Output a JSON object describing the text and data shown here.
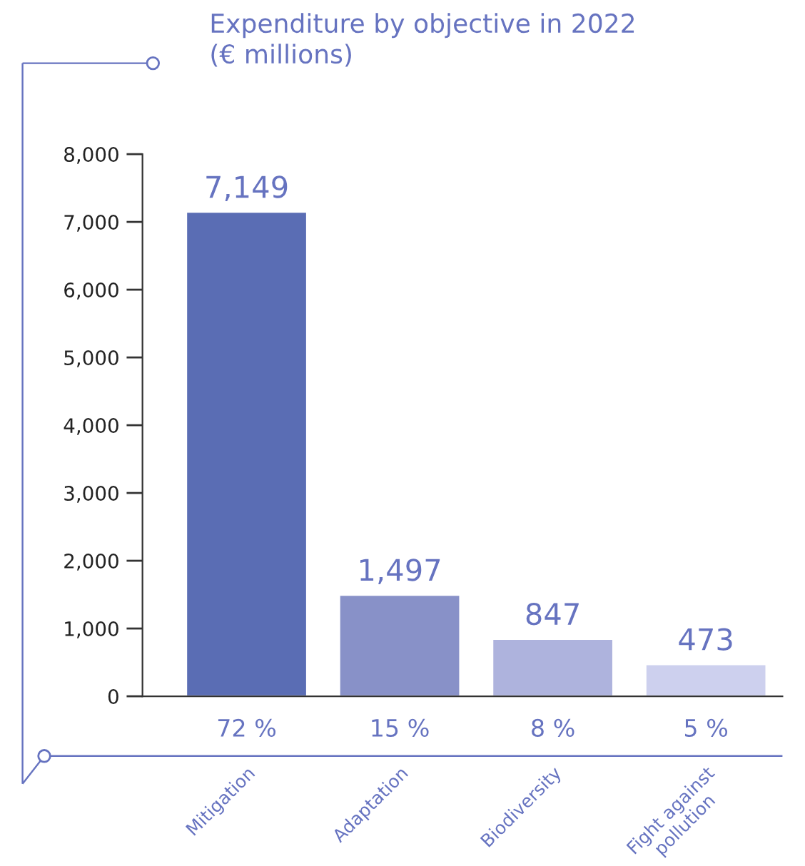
{
  "chart_data": {
    "type": "bar",
    "title": "Expenditure by objective in 2022\n(€ millions)",
    "categories": [
      "Mitigation",
      "Adaptation",
      "Biodiversity",
      "Fight against\npollution"
    ],
    "values": [
      7149,
      1497,
      847,
      473
    ],
    "colors": [
      "#5a6db4",
      "#8891c8",
      "#aeb3dd",
      "#cdd0ee"
    ],
    "ylim": [
      0,
      8000
    ],
    "yticks": [
      {
        "value": 0,
        "label": "0"
      },
      {
        "value": 1000,
        "label": "1,000"
      },
      {
        "value": 2000,
        "label": "2,000"
      },
      {
        "value": 3000,
        "label": "3,000"
      },
      {
        "value": 4000,
        "label": "4,000"
      },
      {
        "value": 5000,
        "label": "5,000"
      },
      {
        "value": 6000,
        "label": "6,000"
      },
      {
        "value": 7000,
        "label": "7,000"
      },
      {
        "value": 8000,
        "label": "8,000"
      }
    ],
    "value_labels": [
      "7,149",
      "1,497",
      "847",
      "473"
    ],
    "annotations": [
      "72 %",
      "15 %",
      "8 %",
      "5 %"
    ],
    "grid": false,
    "legend": false
  }
}
